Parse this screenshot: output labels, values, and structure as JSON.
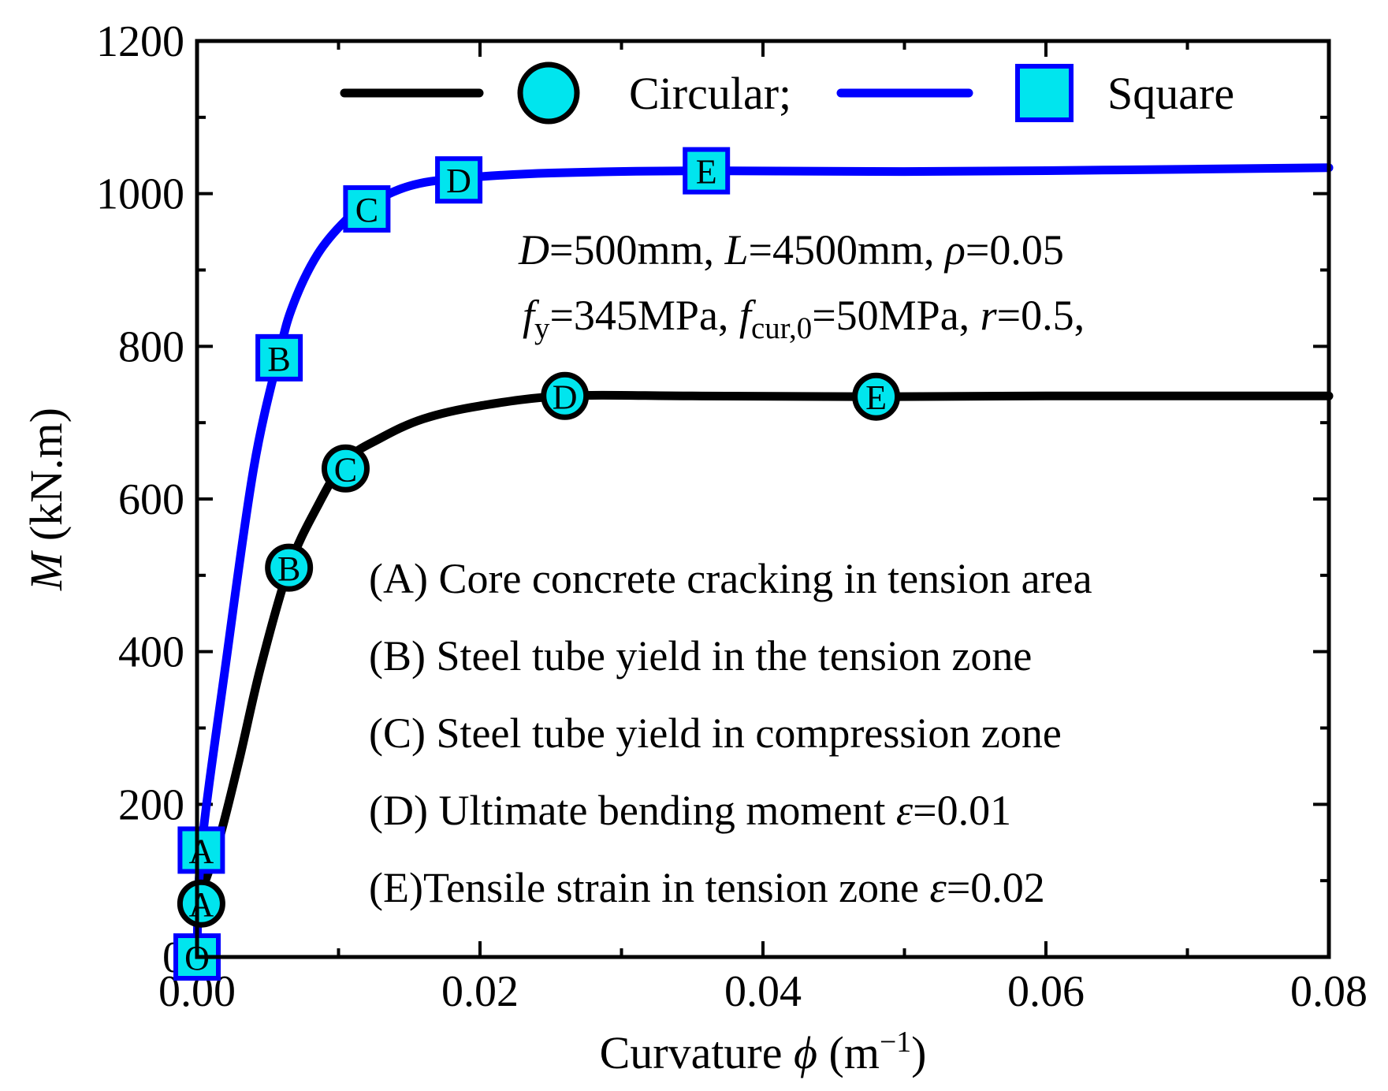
{
  "chart_data": {
    "type": "line",
    "title": "",
    "xlabel": {
      "pre": "Curvature ",
      "sym": "ϕ",
      "unit_open": " (m",
      "unit_sup": "−1",
      "unit_close": ")"
    },
    "ylabel": {
      "sym": "M",
      "unit": " (kN.m)"
    },
    "xlim": [
      0,
      0.08
    ],
    "ylim": [
      0,
      1200
    ],
    "xticks": [
      "0.00",
      "0.02",
      "0.04",
      "0.06",
      "0.08"
    ],
    "xtick_values": [
      0,
      0.02,
      0.04,
      0.06,
      0.08
    ],
    "yticks": [
      "0",
      "200",
      "400",
      "600",
      "800",
      "1000",
      "1200"
    ],
    "ytick_values": [
      0,
      200,
      400,
      600,
      800,
      1000,
      1200
    ],
    "grid": false,
    "legend": {
      "placement": "top",
      "entries": [
        {
          "label": "Circular;",
          "color": "#000000",
          "marker": "circle"
        },
        {
          "label": "Square",
          "color": "#0000ff",
          "marker": "square"
        }
      ]
    },
    "series": [
      {
        "name": "Circular",
        "color": "#000000",
        "marker": "circle",
        "x": [
          0,
          0.0015,
          0.003,
          0.0045,
          0.0065,
          0.0085,
          0.0105,
          0.013,
          0.016,
          0.02,
          0.026,
          0.035,
          0.048,
          0.06,
          0.07,
          0.08
        ],
        "y": [
          70,
          150,
          260,
          380,
          510,
          590,
          650,
          680,
          705,
          722,
          735,
          735,
          734,
          735,
          735,
          735
        ],
        "points": [
          {
            "label": "A",
            "x": 0.0003,
            "y": 70
          },
          {
            "label": "B",
            "x": 0.0065,
            "y": 510
          },
          {
            "label": "C",
            "x": 0.0105,
            "y": 640
          },
          {
            "label": "D",
            "x": 0.026,
            "y": 735
          },
          {
            "label": "E",
            "x": 0.048,
            "y": 734
          }
        ]
      },
      {
        "name": "Square",
        "color": "#0000ff",
        "marker": "square",
        "x": [
          0,
          0.0003,
          0.002,
          0.004,
          0.0058,
          0.0068,
          0.0085,
          0.0105,
          0.012,
          0.015,
          0.0185,
          0.025,
          0.036,
          0.05,
          0.065,
          0.08
        ],
        "y": [
          0,
          140,
          380,
          640,
          790,
          855,
          920,
          965,
          985,
          1010,
          1020,
          1027,
          1030,
          1029,
          1031,
          1034
        ],
        "points": [
          {
            "label": "O",
            "x": 0,
            "y": 0
          },
          {
            "label": "A",
            "x": 0.0003,
            "y": 140
          },
          {
            "label": "B",
            "x": 0.0058,
            "y": 785
          },
          {
            "label": "C",
            "x": 0.012,
            "y": 980
          },
          {
            "label": "D",
            "x": 0.0185,
            "y": 1018
          },
          {
            "label": "E",
            "x": 0.036,
            "y": 1030
          }
        ]
      }
    ],
    "annotations": {
      "params_line1": [
        {
          "t": "D",
          "i": true
        },
        {
          "t": "=500mm,   "
        },
        {
          "t": "L",
          "i": true
        },
        {
          "t": "=4500mm, "
        },
        {
          "t": "ρ",
          "i": true
        },
        {
          "t": "=0.05"
        }
      ],
      "params_line2": [
        {
          "t": "f",
          "i": true
        },
        {
          "t": "y",
          "sub": true
        },
        {
          "t": "=345MPa, "
        },
        {
          "t": "f",
          "i": true
        },
        {
          "t": "cur,0",
          "sub": true
        },
        {
          "t": "=50MPa, "
        },
        {
          "t": "r",
          "i": true
        },
        {
          "t": "=0.5,"
        }
      ],
      "events": [
        [
          {
            "t": "(A) Core concrete cracking in tension area"
          }
        ],
        [
          {
            "t": "(B) Steel tube yield in the tension zone"
          }
        ],
        [
          {
            "t": "(C) Steel tube yield in compression zone"
          }
        ],
        [
          {
            "t": "(D) Ultimate bending moment "
          },
          {
            "t": "ε",
            "i": true
          },
          {
            "t": "=0.01"
          }
        ],
        [
          {
            "t": "(E)Tensile strain in tension zone "
          },
          {
            "t": "ε",
            "i": true
          },
          {
            "t": "=0.02"
          }
        ]
      ]
    },
    "colors": {
      "marker_fill": "#00e5ee",
      "circular_line": "#000000",
      "square_line": "#0000ff"
    }
  }
}
